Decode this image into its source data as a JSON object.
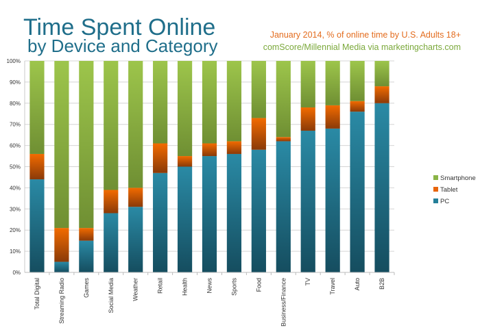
{
  "header": {
    "title_line1": "Time Spent Online",
    "title_line2": "by Device and Category",
    "subtitle": "January 2014, % of online time by U.S. Adults 18+",
    "source": "comScore/Millennial Media via marketingcharts.com"
  },
  "colors": {
    "title": "#1f6e8a",
    "subtitle": "#e36c1e",
    "source": "#7aa83a",
    "pc": "#247f99",
    "tablet": "#e8650c",
    "smartphone": "#8ab446"
  },
  "chart_data": {
    "type": "bar",
    "stacked": true,
    "title": "Time Spent Online by Device and Category",
    "subtitle": "January 2014, % of online time by U.S. Adults 18+",
    "xlabel": "",
    "ylabel": "",
    "ylim": [
      0,
      100
    ],
    "yticks": [
      "0%",
      "10%",
      "20%",
      "30%",
      "40%",
      "50%",
      "60%",
      "70%",
      "80%",
      "90%",
      "100%"
    ],
    "grid": true,
    "legend_position": "right",
    "categories": [
      "Total Digital",
      "Streaming Radio",
      "Games",
      "Social Media",
      "Weather",
      "Retail",
      "Health",
      "News",
      "Sports",
      "Food",
      "Business/Finance",
      "TV",
      "Travel",
      "Auto",
      "B2B"
    ],
    "series": [
      {
        "name": "PC",
        "values": [
          44,
          5,
          15,
          28,
          31,
          47,
          50,
          55,
          56,
          58,
          62,
          67,
          68,
          76,
          80
        ]
      },
      {
        "name": "Tablet",
        "values": [
          12,
          16,
          6,
          11,
          9,
          14,
          5,
          6,
          6,
          15,
          2,
          11,
          11,
          5,
          8
        ]
      },
      {
        "name": "Smartphone",
        "values": [
          44,
          79,
          79,
          61,
          60,
          39,
          45,
          39,
          38,
          27,
          36,
          22,
          21,
          19,
          12
        ]
      }
    ],
    "legend": [
      "Smartphone",
      "Tablet",
      "PC"
    ]
  }
}
